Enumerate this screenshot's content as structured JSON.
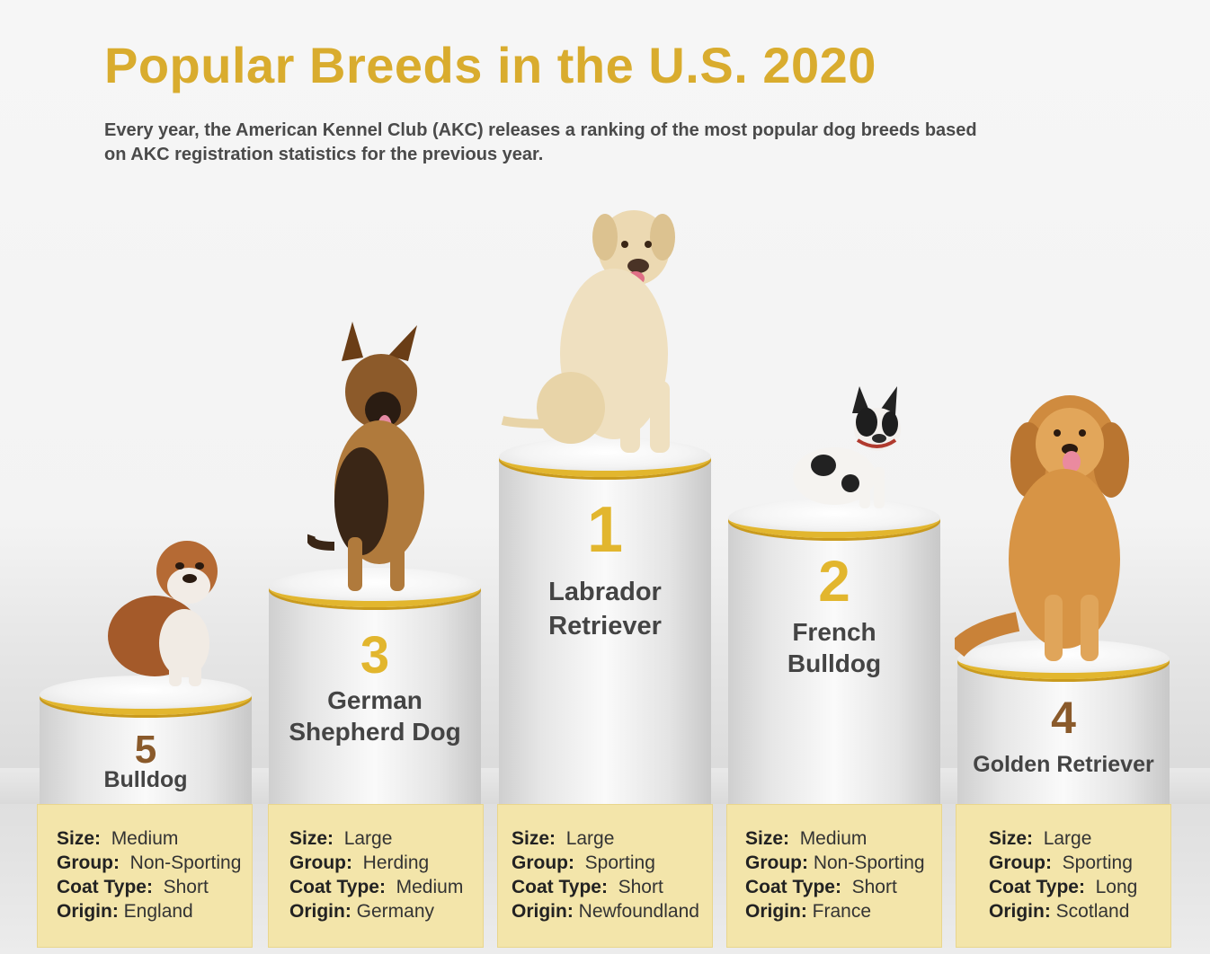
{
  "title": "Popular Breeds in the U.S. 2020",
  "subtitle": "Every year, the American Kennel Club (AKC) releases a ranking of the most popular dog breeds based on AKC registration statistics for the previous year.",
  "colors": {
    "accent": "#e2b62e",
    "title": "#d9ac2e",
    "rank_5_4": "#8a5a2b",
    "card": "#f3e5aa"
  },
  "labels": {
    "size": "Size:",
    "group": "Group:",
    "coat": "Coat Type:",
    "origin": "Origin:"
  },
  "breeds": [
    {
      "rank": "5",
      "name_line1": "Bulldog",
      "name_line2": "",
      "size": "Medium",
      "group": "Non-Sporting",
      "coat": "Short",
      "origin": "England",
      "icon": "bulldog-photo"
    },
    {
      "rank": "3",
      "name_line1": "German",
      "name_line2": "Shepherd Dog",
      "size": "Large",
      "group": "Herding",
      "coat": "Medium",
      "origin": "Germany",
      "icon": "german-shepherd-photo"
    },
    {
      "rank": "1",
      "name_line1": "Labrador",
      "name_line2": "Retriever",
      "size": "Large",
      "group": "Sporting",
      "coat": "Short",
      "origin": "Newfoundland",
      "icon": "labrador-photo"
    },
    {
      "rank": "2",
      "name_line1": "French",
      "name_line2": "Bulldog",
      "size": "Medium",
      "group": "Non-Sporting",
      "coat": "Short",
      "origin": "France",
      "icon": "french-bulldog-photo"
    },
    {
      "rank": "4",
      "name_line1": "Golden Retriever",
      "name_line2": "",
      "size": "Large",
      "group": "Sporting",
      "coat": "Long",
      "origin": "Scotland",
      "icon": "golden-retriever-photo"
    }
  ]
}
